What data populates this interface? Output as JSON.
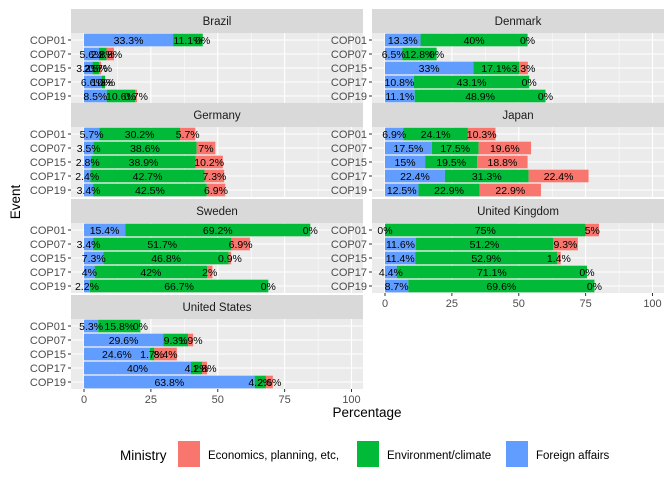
{
  "chart_data": {
    "type": "bar",
    "orientation": "horizontal",
    "stacked": true,
    "xlabel": "Percentage",
    "ylabel": "Event",
    "xlim": [
      0,
      100
    ],
    "x_ticks": [
      0,
      25,
      50,
      75,
      100
    ],
    "categories": [
      "COP01",
      "COP07",
      "COP15",
      "COP17",
      "COP19"
    ],
    "legend": {
      "title": "Ministry",
      "position": "bottom"
    },
    "series": [
      {
        "name": "Economics, planning, etc,",
        "color": "#F8766D"
      },
      {
        "name": "Environment/climate",
        "color": "#00BA38"
      },
      {
        "name": "Foreign affairs",
        "color": "#619CFF"
      }
    ],
    "panels": [
      {
        "title": "Brazil",
        "rows": [
          {
            "event": "COP01",
            "values": {
              "Foreign affairs": 33.3,
              "Environment/climate": 11.1,
              "Economics, planning, etc,": 0
            },
            "labels": [
              "33.3%",
              "11.1%",
              "0%"
            ]
          },
          {
            "event": "COP07",
            "values": {
              "Foreign affairs": 5.6,
              "Environment/climate": 2.8,
              "Economics, planning, etc,": 2.8
            },
            "labels": [
              "5.6%",
              "2.8%",
              "2.8%"
            ]
          },
          {
            "event": "COP15",
            "values": {
              "Foreign affairs": 3.2,
              "Environment/climate": 2.5,
              "Economics, planning, etc,": 0.7
            },
            "labels": [
              "3.2%",
              "2.5%",
              "0.7%"
            ]
          },
          {
            "event": "COP17",
            "values": {
              "Foreign affairs": 6.6,
              "Environment/climate": 1.3,
              "Economics, planning, etc,": 0
            },
            "labels": [
              "6.6%",
              "1.3%",
              "0%"
            ]
          },
          {
            "event": "COP19",
            "values": {
              "Foreign affairs": 8.5,
              "Environment/climate": 10.6,
              "Economics, planning, etc,": 0.7
            },
            "labels": [
              "8.5%",
              "10.6%",
              "0.7%"
            ]
          }
        ]
      },
      {
        "title": "Denmark",
        "rows": [
          {
            "event": "COP01",
            "values": {
              "Foreign affairs": 13.3,
              "Environment/climate": 40,
              "Economics, planning, etc,": 0
            },
            "labels": [
              "13.3%",
              "40%",
              "0%"
            ]
          },
          {
            "event": "COP07",
            "values": {
              "Foreign affairs": 6.5,
              "Environment/climate": 12.8,
              "Economics, planning, etc,": 0
            },
            "labels": [
              "6.5%",
              "12.8%",
              "0%"
            ]
          },
          {
            "event": "COP15",
            "values": {
              "Foreign affairs": 33,
              "Environment/climate": 17.1,
              "Economics, planning, etc,": 3.3
            },
            "labels": [
              "33%",
              "17.1%",
              "3.3%"
            ]
          },
          {
            "event": "COP17",
            "values": {
              "Foreign affairs": 10.8,
              "Environment/climate": 43.1,
              "Economics, planning, etc,": 0
            },
            "labels": [
              "10.8%",
              "43.1%",
              "0%"
            ]
          },
          {
            "event": "COP19",
            "values": {
              "Foreign affairs": 11.1,
              "Environment/climate": 48.9,
              "Economics, planning, etc,": 0
            },
            "labels": [
              "11.1%",
              "48.9%",
              "0%"
            ]
          }
        ]
      },
      {
        "title": "Germany",
        "rows": [
          {
            "event": "COP01",
            "values": {
              "Foreign affairs": 5.7,
              "Environment/climate": 30.2,
              "Economics, planning, etc,": 5.7
            },
            "labels": [
              "5.7%",
              "30.2%",
              "5.7%"
            ]
          },
          {
            "event": "COP07",
            "values": {
              "Foreign affairs": 3.5,
              "Environment/climate": 38.6,
              "Economics, planning, etc,": 7
            },
            "labels": [
              "3.5%",
              "38.6%",
              "7%"
            ]
          },
          {
            "event": "COP15",
            "values": {
              "Foreign affairs": 2.8,
              "Environment/climate": 38.9,
              "Economics, planning, etc,": 10.2
            },
            "labels": [
              "2.8%",
              "38.9%",
              "10.2%"
            ]
          },
          {
            "event": "COP17",
            "values": {
              "Foreign affairs": 2.4,
              "Environment/climate": 42.7,
              "Economics, planning, etc,": 7.3
            },
            "labels": [
              "2.4%",
              "42.7%",
              "7.3%"
            ]
          },
          {
            "event": "COP19",
            "values": {
              "Foreign affairs": 3.4,
              "Environment/climate": 42.5,
              "Economics, planning, etc,": 6.9
            },
            "labels": [
              "3.4%",
              "42.5%",
              "6.9%"
            ]
          }
        ]
      },
      {
        "title": "Japan",
        "rows": [
          {
            "event": "COP01",
            "values": {
              "Foreign affairs": 6.9,
              "Environment/climate": 24.1,
              "Economics, planning, etc,": 10.3
            },
            "labels": [
              "6.9%",
              "24.1%",
              "10.3%"
            ]
          },
          {
            "event": "COP07",
            "values": {
              "Foreign affairs": 17.5,
              "Environment/climate": 17.5,
              "Economics, planning, etc,": 19.6
            },
            "labels": [
              "17.5%",
              "17.5%",
              "19.6%"
            ]
          },
          {
            "event": "COP15",
            "values": {
              "Foreign affairs": 15,
              "Environment/climate": 19.5,
              "Economics, planning, etc,": 18.8
            },
            "labels": [
              "15%",
              "19.5%",
              "18.8%"
            ]
          },
          {
            "event": "COP17",
            "values": {
              "Foreign affairs": 22.4,
              "Environment/climate": 31.3,
              "Economics, planning, etc,": 22.4
            },
            "labels": [
              "22.4%",
              "31.3%",
              "22.4%"
            ]
          },
          {
            "event": "COP19",
            "values": {
              "Foreign affairs": 12.5,
              "Environment/climate": 22.9,
              "Economics, planning, etc,": 22.9
            },
            "labels": [
              "12.5%",
              "22.9%",
              "22.9%"
            ]
          }
        ]
      },
      {
        "title": "Sweden",
        "rows": [
          {
            "event": "COP01",
            "values": {
              "Foreign affairs": 15.4,
              "Environment/climate": 69.2,
              "Economics, planning, etc,": 0
            },
            "labels": [
              "15.4%",
              "69.2%",
              "0%"
            ]
          },
          {
            "event": "COP07",
            "values": {
              "Foreign affairs": 3.4,
              "Environment/climate": 51.7,
              "Economics, planning, etc,": 6.9
            },
            "labels": [
              "3.4%",
              "51.7%",
              "6.9%"
            ]
          },
          {
            "event": "COP15",
            "values": {
              "Foreign affairs": 7.3,
              "Environment/climate": 46.8,
              "Economics, planning, etc,": 0.9
            },
            "labels": [
              "7.3%",
              "46.8%",
              "0.9%"
            ]
          },
          {
            "event": "COP17",
            "values": {
              "Foreign affairs": 4,
              "Environment/climate": 42,
              "Economics, planning, etc,": 2
            },
            "labels": [
              "4%",
              "42%",
              "2%"
            ]
          },
          {
            "event": "COP19",
            "values": {
              "Foreign affairs": 2.2,
              "Environment/climate": 66.7,
              "Economics, planning, etc,": 0
            },
            "labels": [
              "2.2%",
              "66.7%",
              "0%"
            ]
          }
        ]
      },
      {
        "title": "United Kingdom",
        "rows": [
          {
            "event": "COP01",
            "values": {
              "Foreign affairs": 0,
              "Environment/climate": 75,
              "Economics, planning, etc,": 5
            },
            "labels": [
              "0%",
              "75%",
              "5%"
            ]
          },
          {
            "event": "COP07",
            "values": {
              "Foreign affairs": 11.6,
              "Environment/climate": 51.2,
              "Economics, planning, etc,": 9.3
            },
            "labels": [
              "11.6%",
              "51.2%",
              "9.3%"
            ]
          },
          {
            "event": "COP15",
            "values": {
              "Foreign affairs": 11.4,
              "Environment/climate": 52.9,
              "Economics, planning, etc,": 1.4
            },
            "labels": [
              "11.4%",
              "52.9%",
              "1.4%"
            ]
          },
          {
            "event": "COP17",
            "values": {
              "Foreign affairs": 4.4,
              "Environment/climate": 71.1,
              "Economics, planning, etc,": 0
            },
            "labels": [
              "4.4%",
              "71.1%",
              "0%"
            ]
          },
          {
            "event": "COP19",
            "values": {
              "Foreign affairs": 8.7,
              "Environment/climate": 69.6,
              "Economics, planning, etc,": 0
            },
            "labels": [
              "8.7%",
              "69.6%",
              "0%"
            ]
          }
        ]
      },
      {
        "title": "United States",
        "rows": [
          {
            "event": "COP01",
            "values": {
              "Foreign affairs": 5.3,
              "Environment/climate": 15.8,
              "Economics, planning, etc,": 0
            },
            "labels": [
              "5.3%",
              "15.8%",
              "0%"
            ]
          },
          {
            "event": "COP07",
            "values": {
              "Foreign affairs": 29.6,
              "Environment/climate": 9.3,
              "Economics, planning, etc,": 1.9
            },
            "labels": [
              "29.6%",
              "9.3%",
              "1.9%"
            ]
          },
          {
            "event": "COP15",
            "values": {
              "Foreign affairs": 24.6,
              "Environment/climate": 1.7,
              "Economics, planning, etc,": 8.4
            },
            "labels": [
              "24.6%",
              "1.7%",
              "8.4%"
            ]
          },
          {
            "event": "COP17",
            "values": {
              "Foreign affairs": 40,
              "Environment/climate": 4.2,
              "Economics, planning, etc,": 1.8
            },
            "labels": [
              "40%",
              "4.2%",
              "1.8%"
            ]
          },
          {
            "event": "COP19",
            "values": {
              "Foreign affairs": 63.8,
              "Environment/climate": 4.2,
              "Economics, planning, etc,": 2.6
            },
            "labels": [
              "63.8%",
              "4.2%",
              "2.6%"
            ]
          }
        ]
      }
    ]
  }
}
